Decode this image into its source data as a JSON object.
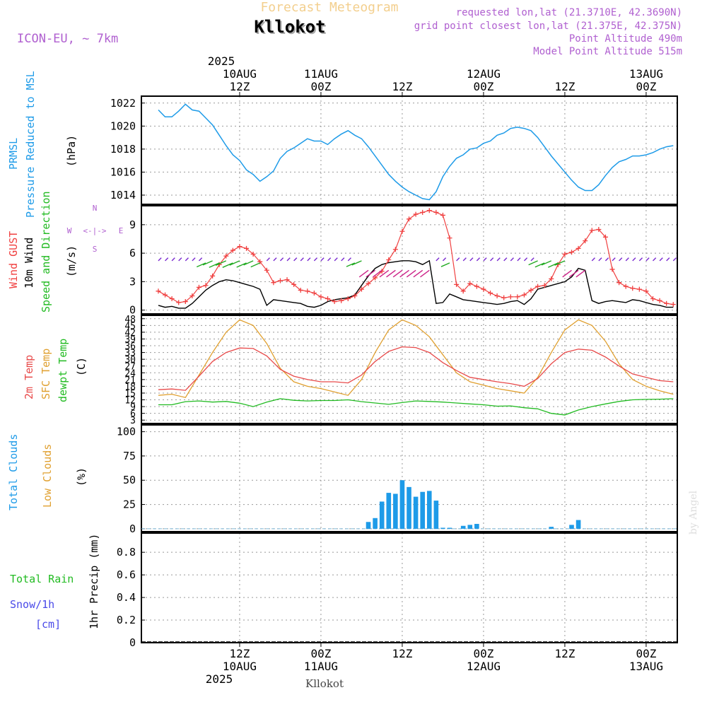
{
  "header": {
    "title": "Forecast Meteogram",
    "location": "Kllokot",
    "model": "ICON-EU, ~ 7km",
    "requested": "requested lon,lat (21.3710E, 42.3690N)",
    "grid_point": "grid point closest lon,lat (21.375E, 42.375N)",
    "point_alt": "Point Altitude 490m",
    "model_alt": "Model Point Altitude 515m",
    "footer_location": "Kllokot",
    "watermark": "by Angel"
  },
  "time_axis": {
    "top_year": "2025",
    "bottom_year": "2025",
    "ticks": [
      {
        "hour": 12,
        "label": "12Z",
        "date": "10AUG"
      },
      {
        "hour": 24,
        "label": "00Z",
        "date": "11AUG"
      },
      {
        "hour": 36,
        "label": "12Z",
        "date": ""
      },
      {
        "hour": 48,
        "label": "00Z",
        "date": "12AUG"
      },
      {
        "hour": 60,
        "label": "12Z",
        "date": ""
      },
      {
        "hour": 72,
        "label": "00Z",
        "date": "13AUG"
      }
    ]
  },
  "colors": {
    "pressure": "#1e9be8",
    "gust": "#f04040",
    "wind": "#000000",
    "t2m": "#e84a4a",
    "sfc": "#e0a030",
    "dew": "#22bb22",
    "clouds": "#1e9be8",
    "low_clouds": "#e0a030",
    "rain": "#22bb22",
    "snow": "#4a4ae8",
    "header_purple": "#b060d0"
  },
  "panel_labels": {
    "pressure": [
      "PRMSL",
      "Pressure Reduced to MSL"
    ],
    "pressure_unit": "(hPa)",
    "wind": [
      "Wind GUST",
      "10m Wind",
      "Speed and Direction"
    ],
    "wind_unit": "(m/s)",
    "compass": {
      "n": "N",
      "s": "S",
      "w": "W",
      "e": "E",
      "arrow": "<-|->"
    },
    "temp": [
      "2m Temp",
      "SFC Temp",
      "dewpt Temp"
    ],
    "temp_unit": "(C)",
    "clouds": [
      "Total Clouds",
      "Low Clouds"
    ],
    "clouds_unit": "(%)",
    "precip_side": [
      "Total Rain",
      "Snow/1h",
      "[cm]"
    ],
    "precip_unit": "1hr Precip (mm)"
  },
  "chart_data": [
    {
      "type": "line",
      "name": "pressure",
      "x_hours": [
        0,
        1,
        2,
        3,
        4,
        5,
        6,
        7,
        8,
        9,
        10,
        11,
        12,
        13,
        14,
        15,
        16,
        17,
        18,
        19,
        20,
        21,
        22,
        23,
        24,
        25,
        26,
        27,
        28,
        29,
        30,
        31,
        32,
        33,
        34,
        35,
        36,
        37,
        38,
        39,
        40,
        41,
        42,
        43,
        44,
        45,
        46,
        47,
        48,
        49,
        50,
        51,
        52,
        53,
        54,
        55,
        56,
        57,
        58,
        59,
        60,
        61,
        62,
        63,
        64,
        65,
        66,
        67,
        68,
        69,
        70,
        71,
        72,
        73,
        74,
        75,
        76
      ],
      "values": [
        1021.4,
        1020.8,
        1020.8,
        1021.3,
        1021.9,
        1021.4,
        1021.3,
        1020.7,
        1020.1,
        1019.2,
        1018.3,
        1017.5,
        1017.0,
        1016.2,
        1015.8,
        1015.2,
        1015.6,
        1016.1,
        1017.2,
        1017.8,
        1018.1,
        1018.5,
        1018.9,
        1018.7,
        1018.7,
        1018.4,
        1018.9,
        1019.3,
        1019.6,
        1019.2,
        1018.9,
        1018.2,
        1017.4,
        1016.6,
        1015.8,
        1015.2,
        1014.7,
        1014.3,
        1014.0,
        1013.7,
        1013.6,
        1014.3,
        1015.6,
        1016.5,
        1017.2,
        1017.5,
        1018.0,
        1018.1,
        1018.5,
        1018.7,
        1019.2,
        1019.4,
        1019.8,
        1019.9,
        1019.8,
        1019.6,
        1019.0,
        1018.2,
        1017.4,
        1016.7,
        1016.0,
        1015.3,
        1014.7,
        1014.4,
        1014.4,
        1014.9,
        1015.7,
        1016.4,
        1016.9,
        1017.1,
        1017.4,
        1017.4,
        1017.5,
        1017.7,
        1018.0,
        1018.2,
        1018.3
      ],
      "ylim": [
        1013.2,
        1022.6
      ],
      "yticks": [
        1014,
        1016,
        1018,
        1020,
        1022
      ]
    },
    {
      "type": "line",
      "name": "wind",
      "x_hours": [
        0,
        1,
        2,
        3,
        4,
        5,
        6,
        7,
        8,
        9,
        10,
        11,
        12,
        13,
        14,
        15,
        16,
        17,
        18,
        19,
        20,
        21,
        22,
        23,
        24,
        25,
        26,
        27,
        28,
        29,
        30,
        31,
        32,
        33,
        34,
        35,
        36,
        37,
        38,
        39,
        40,
        41,
        42,
        43,
        44,
        45,
        46,
        47,
        48,
        49,
        50,
        51,
        52,
        53,
        54,
        55,
        56,
        57,
        58,
        59,
        60,
        61,
        62,
        63,
        64,
        65,
        66,
        67,
        68,
        69,
        70,
        71,
        72,
        73,
        74,
        75,
        76
      ],
      "gust": [
        2.0,
        1.6,
        1.2,
        0.8,
        0.9,
        1.5,
        2.4,
        2.6,
        3.6,
        4.8,
        5.7,
        6.3,
        6.7,
        6.5,
        5.9,
        5.1,
        4.2,
        2.9,
        3.1,
        3.2,
        2.7,
        2.1,
        2.0,
        1.8,
        1.4,
        1.2,
        0.9,
        1.0,
        1.2,
        1.5,
        2.2,
        2.8,
        3.4,
        4.1,
        5.3,
        6.4,
        8.3,
        9.6,
        10.1,
        10.3,
        10.5,
        10.3,
        10.0,
        7.6,
        2.7,
        2.0,
        2.8,
        2.5,
        2.2,
        1.8,
        1.5,
        1.3,
        1.4,
        1.4,
        1.6,
        2.1,
        2.5,
        2.6,
        3.3,
        4.8,
        5.9,
        6.1,
        6.5,
        7.3,
        8.4,
        8.5,
        7.7,
        4.3,
        2.9,
        2.5,
        2.3,
        2.2,
        2.0,
        1.2,
        1.0,
        0.7,
        0.6
      ],
      "wind": [
        0.5,
        0.3,
        0.4,
        0.2,
        0.2,
        0.7,
        1.4,
        2.1,
        2.6,
        3.0,
        3.2,
        3.1,
        2.9,
        2.7,
        2.5,
        2.2,
        0.5,
        1.1,
        1.0,
        0.9,
        0.8,
        0.7,
        0.4,
        0.3,
        0.5,
        0.9,
        1.1,
        1.2,
        1.3,
        1.6,
        2.6,
        3.6,
        4.4,
        4.8,
        5.0,
        5.1,
        5.2,
        5.2,
        5.1,
        4.8,
        5.2,
        0.7,
        0.8,
        1.7,
        1.4,
        1.1,
        1.0,
        0.9,
        0.8,
        0.7,
        0.6,
        0.7,
        0.9,
        1.0,
        0.6,
        1.2,
        2.2,
        2.4,
        2.6,
        2.8,
        3.0,
        3.5,
        4.4,
        4.2,
        1.0,
        0.7,
        0.9,
        1.0,
        0.9,
        0.8,
        1.1,
        1.0,
        0.8,
        0.6,
        0.5,
        0.3,
        0.3
      ],
      "ylim": [
        -0.4,
        11.0
      ],
      "yticks": [
        0,
        3,
        6,
        9
      ]
    },
    {
      "type": "line",
      "name": "temperature",
      "x_hours": [
        0,
        2,
        4,
        6,
        8,
        10,
        12,
        14,
        16,
        18,
        20,
        22,
        24,
        26,
        28,
        30,
        32,
        34,
        36,
        38,
        40,
        42,
        44,
        46,
        48,
        50,
        52,
        54,
        56,
        58,
        60,
        62,
        64,
        66,
        68,
        70,
        72,
        74,
        76
      ],
      "t2m": [
        16.5,
        16.8,
        16.2,
        22.5,
        29.0,
        33.0,
        35.0,
        34.8,
        31.5,
        25.5,
        22.5,
        21.0,
        20.0,
        20.0,
        19.5,
        23.0,
        29.0,
        33.5,
        35.5,
        35.2,
        33.0,
        28.5,
        25.0,
        22.0,
        21.0,
        20.0,
        19.2,
        18.0,
        21.5,
        28.0,
        33.0,
        34.5,
        34.0,
        31.0,
        27.0,
        23.5,
        22.0,
        20.5,
        20.0
      ],
      "sfc": [
        14.0,
        14.5,
        13.0,
        23.0,
        33.0,
        42.0,
        47.5,
        45.0,
        37.0,
        26.0,
        20.0,
        18.0,
        17.0,
        15.5,
        14.0,
        21.0,
        33.0,
        43.0,
        47.5,
        45.0,
        40.0,
        32.0,
        24.0,
        20.0,
        18.5,
        17.0,
        16.0,
        15.0,
        22.0,
        33.0,
        43.0,
        47.5,
        45.0,
        38.0,
        28.0,
        21.0,
        18.0,
        16.0,
        14.5
      ],
      "dewpt": [
        9.8,
        9.8,
        11.2,
        11.5,
        11.0,
        11.3,
        10.5,
        9.0,
        11.0,
        12.5,
        11.8,
        11.5,
        11.7,
        11.7,
        12.0,
        11.2,
        10.6,
        10.0,
        10.8,
        11.5,
        11.3,
        11.0,
        10.6,
        10.2,
        9.8,
        9.2,
        9.3,
        8.5,
        8.0,
        6.0,
        5.3,
        7.5,
        9.0,
        10.2,
        11.3,
        12.0,
        12.2,
        12.3,
        12.5
      ],
      "ylim": [
        1.5,
        49.5
      ],
      "yticks": [
        3,
        6,
        9,
        12,
        15,
        18,
        21,
        24,
        27,
        30,
        33,
        36,
        39,
        42,
        45,
        48
      ]
    },
    {
      "type": "bar",
      "name": "clouds",
      "x_hours": [
        31,
        32,
        33,
        34,
        35,
        36,
        37,
        38,
        39,
        40,
        41,
        42,
        43,
        45,
        46,
        47,
        58,
        61,
        62
      ],
      "total_clouds": [
        7,
        11,
        28,
        37,
        36,
        50,
        43,
        33,
        38,
        39,
        29,
        1,
        1,
        3,
        4,
        5,
        2,
        4,
        9
      ],
      "ylim": [
        -3,
        107
      ],
      "yticks": [
        0,
        25,
        50,
        75,
        100
      ]
    },
    {
      "type": "bar",
      "name": "precipitation",
      "values_all_hours": 0,
      "ylim": [
        0,
        0.97
      ],
      "yticks": [
        0,
        0.2,
        0.4,
        0.6,
        0.8
      ]
    }
  ]
}
